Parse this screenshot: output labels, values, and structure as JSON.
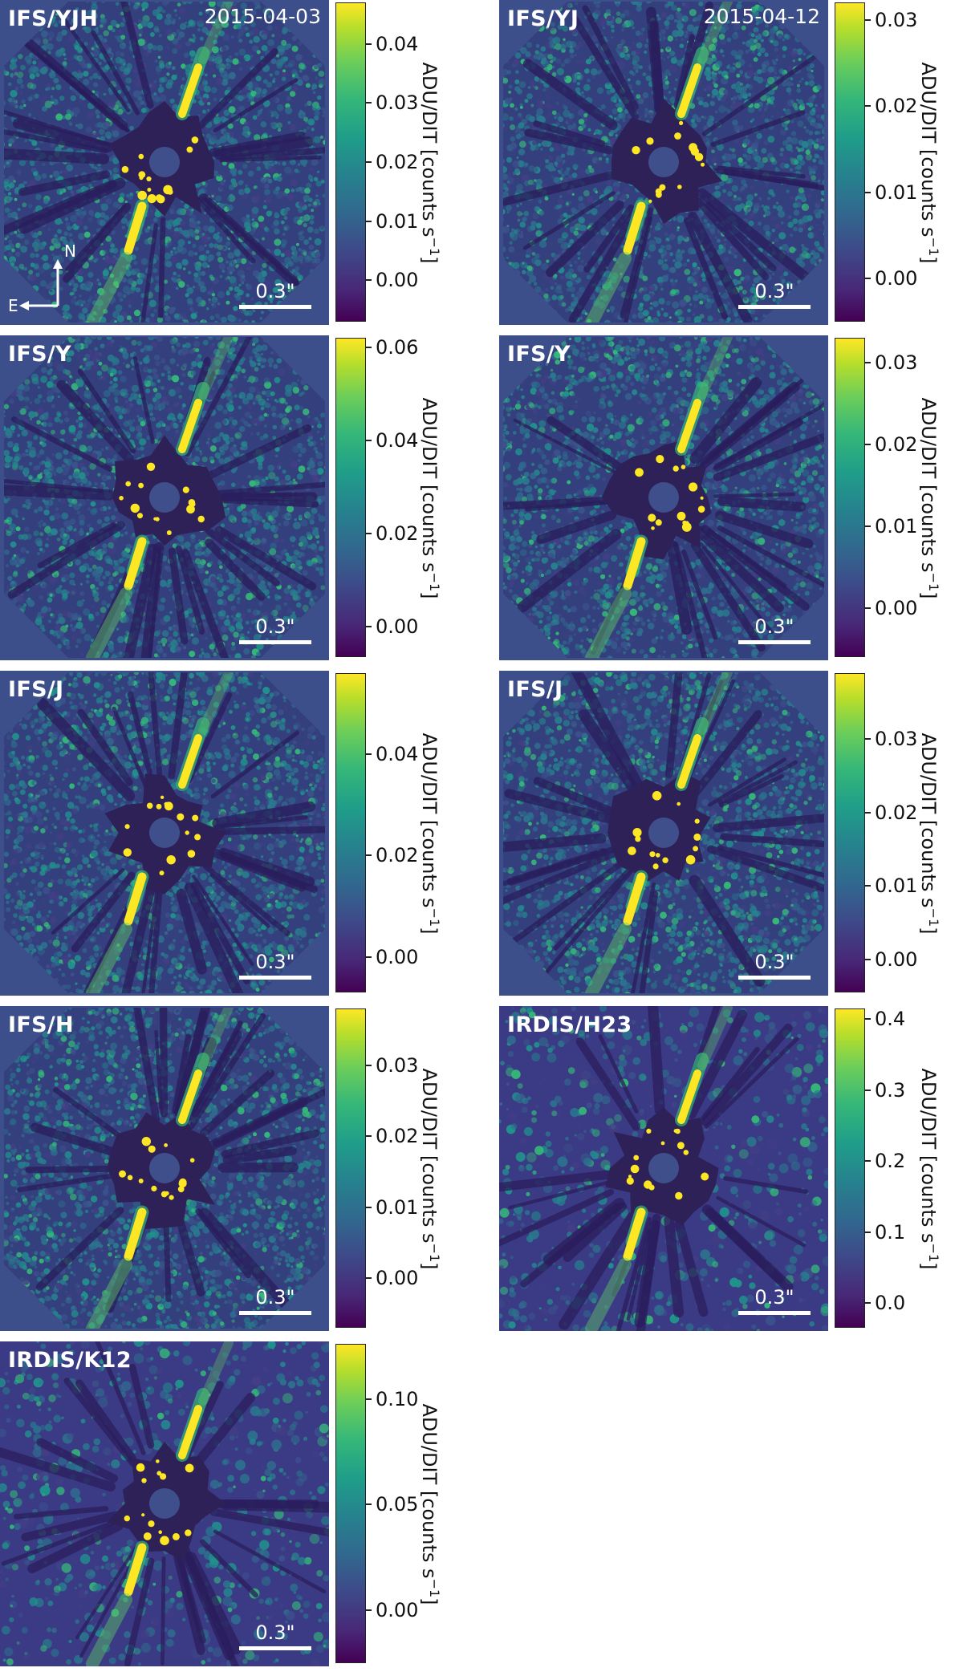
{
  "colors": {
    "background": "#3e4a8c",
    "outside": "#3d4f8a",
    "mask": "#2e2158",
    "viridis_low": "#440154",
    "viridis_high": "#fde725"
  },
  "colorbar_label_main": "ADU/DIT [counts s",
  "colorbar_label_sup": "−1",
  "colorbar_label_end": "]",
  "scalebar_text": "0.3\"",
  "compass": {
    "north": "N",
    "east": "E"
  },
  "panels": [
    {
      "label": "IFS/YJH",
      "date": "2015-04-03",
      "ticks": [
        "0.04",
        "0.03",
        "0.02",
        "0.01",
        "0.00"
      ],
      "tick_values": [
        0.04,
        0.03,
        0.02,
        0.01,
        0.0
      ],
      "cmin": -0.007,
      "cmax": 0.047,
      "compass": true
    },
    {
      "label": "IFS/YJ",
      "date": "2015-04-12",
      "ticks": [
        "0.03",
        "0.02",
        "0.01",
        "0.00"
      ],
      "tick_values": [
        0.03,
        0.02,
        0.01,
        0.0
      ],
      "cmin": -0.005,
      "cmax": 0.032
    },
    {
      "label": "IFS/Y",
      "date": "",
      "ticks": [
        "0.06",
        "0.04",
        "0.02",
        "0.00"
      ],
      "tick_values": [
        0.06,
        0.04,
        0.02,
        0.0
      ],
      "cmin": -0.0065,
      "cmax": 0.062
    },
    {
      "label": "IFS/Y",
      "date": "",
      "ticks": [
        "0.03",
        "0.02",
        "0.01",
        "0.00"
      ],
      "tick_values": [
        0.03,
        0.02,
        0.01,
        0.0
      ],
      "cmin": -0.006,
      "cmax": 0.033
    },
    {
      "label": "IFS/J",
      "date": "",
      "ticks": [
        "0.04",
        "0.02",
        "0.00"
      ],
      "tick_values": [
        0.04,
        0.02,
        0.0
      ],
      "cmin": -0.007,
      "cmax": 0.056
    },
    {
      "label": "IFS/J",
      "date": "",
      "ticks": [
        "0.03",
        "0.02",
        "0.01",
        "0.00"
      ],
      "tick_values": [
        0.03,
        0.02,
        0.01,
        0.0
      ],
      "cmin": -0.0045,
      "cmax": 0.039
    },
    {
      "label": "IFS/H",
      "date": "",
      "ticks": [
        "0.03",
        "0.02",
        "0.01",
        "0.00"
      ],
      "tick_values": [
        0.03,
        0.02,
        0.01,
        0.0
      ],
      "cmin": -0.007,
      "cmax": 0.038
    },
    {
      "label": "IRDIS/H23",
      "date": "",
      "ticks": [
        "0.4",
        "0.3",
        "0.2",
        "0.1",
        "0.0"
      ],
      "tick_values": [
        0.4,
        0.3,
        0.2,
        0.1,
        0.0
      ],
      "cmin": -0.035,
      "cmax": 0.415
    },
    {
      "label": "IRDIS/K12",
      "date": "",
      "ticks": [
        "0.10",
        "0.05",
        "0.00"
      ],
      "tick_values": [
        0.1,
        0.05,
        0.0
      ],
      "cmin": -0.025,
      "cmax": 0.126
    }
  ]
}
